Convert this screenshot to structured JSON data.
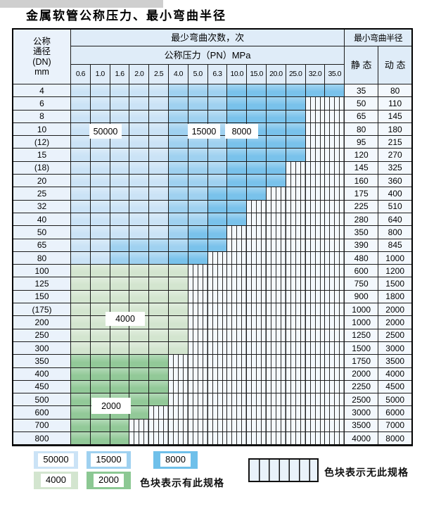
{
  "title": "金属软管公称压力、最小弯曲半径",
  "table": {
    "corner_header_lines": [
      "公称",
      "通径",
      "(DN)",
      "mm"
    ],
    "bend_cycles_header": "最少弯曲次数，次",
    "pressure_header": "公称压力（PN）MPa",
    "radius_header": "最小弯曲半径",
    "static_header": "静 态",
    "dynamic_header": "动 态",
    "pressure_columns": [
      "0.6",
      "1.0",
      "1.6",
      "2.0",
      "2.5",
      "4.0",
      "5.0",
      "6.3",
      "10.0",
      "15.0",
      "20.0",
      "25.0",
      "32.0",
      "35.0"
    ],
    "zone_meaning": {
      "a": "50000次",
      "b": "15000次",
      "c": "8000次",
      "d": "4000次",
      "e": "2000次",
      "x": "无此规格"
    },
    "rows": [
      {
        "dn": "4",
        "zones": "aaaaabbbcccccc",
        "static": "35",
        "dynamic": "80"
      },
      {
        "dn": "6",
        "zones": "aaaaabbbccccxx",
        "static": "50",
        "dynamic": "110"
      },
      {
        "dn": "8",
        "zones": "aaaaabbbccccxx",
        "static": "65",
        "dynamic": "145"
      },
      {
        "dn": "10",
        "zones": "aaaaabbbccccxx",
        "static": "80",
        "dynamic": "180"
      },
      {
        "dn": "(12)",
        "zones": "aaaaabbbccccxx",
        "static": "95",
        "dynamic": "215"
      },
      {
        "dn": "15",
        "zones": "aaaaabbbccccxx",
        "static": "120",
        "dynamic": "270"
      },
      {
        "dn": "(18)",
        "zones": "aaaaabbbcccxxx",
        "static": "145",
        "dynamic": "325"
      },
      {
        "dn": "20",
        "zones": "aaaaabbbcccxxx",
        "static": "160",
        "dynamic": "360"
      },
      {
        "dn": "25",
        "zones": "aaaaabbcccxxxx",
        "static": "175",
        "dynamic": "400"
      },
      {
        "dn": "32",
        "zones": "aaaaabbccxxxxx",
        "static": "225",
        "dynamic": "510"
      },
      {
        "dn": "40",
        "zones": "aaaaabbccxxxxx",
        "static": "280",
        "dynamic": "640"
      },
      {
        "dn": "50",
        "zones": "aaaaabccxxxxxx",
        "static": "350",
        "dynamic": "800"
      },
      {
        "dn": "65",
        "zones": "aabbbbccxxxxxx",
        "static": "390",
        "dynamic": "845"
      },
      {
        "dn": "80",
        "zones": "aabbbccxxxxxxx",
        "static": "480",
        "dynamic": "1000"
      },
      {
        "dn": "100",
        "zones": "ddddddxxxxxxxx",
        "static": "600",
        "dynamic": "1200"
      },
      {
        "dn": "125",
        "zones": "ddddddxxxxxxxx",
        "static": "750",
        "dynamic": "1500"
      },
      {
        "dn": "150",
        "zones": "ddddddxxxxxxxx",
        "static": "900",
        "dynamic": "1800"
      },
      {
        "dn": "(175)",
        "zones": "ddddddxxxxxxxx",
        "static": "1000",
        "dynamic": "2000"
      },
      {
        "dn": "200",
        "zones": "ddddddxxxxxxxx",
        "static": "1000",
        "dynamic": "2000"
      },
      {
        "dn": "250",
        "zones": "ddddddxxxxxxxx",
        "static": "1250",
        "dynamic": "2500"
      },
      {
        "dn": "300",
        "zones": "ddddddxxxxxxxx",
        "static": "1500",
        "dynamic": "3000"
      },
      {
        "dn": "350",
        "zones": "eeeeexxxxxxxxx",
        "static": "1750",
        "dynamic": "3500"
      },
      {
        "dn": "400",
        "zones": "eeeeexxxxxxxxx",
        "static": "2000",
        "dynamic": "4000"
      },
      {
        "dn": "450",
        "zones": "eeeeexxxxxxxxx",
        "static": "2250",
        "dynamic": "4500"
      },
      {
        "dn": "500",
        "zones": "eeeeexxxxxxxxx",
        "static": "2500",
        "dynamic": "5000"
      },
      {
        "dn": "600",
        "zones": "eeeexxxxxxxxxx",
        "static": "3000",
        "dynamic": "6000"
      },
      {
        "dn": "700",
        "zones": "eeexxxxxxxxxxx",
        "static": "3500",
        "dynamic": "7000"
      },
      {
        "dn": "800",
        "zones": "eeexxxxxxxxxxx",
        "static": "4000",
        "dynamic": "8000"
      }
    ]
  },
  "overlays": {
    "labels": [
      "50000",
      "15000",
      "8000",
      "4000",
      "2000"
    ]
  },
  "legend": {
    "chips": [
      {
        "label": "50000",
        "color": "#cbe3f6"
      },
      {
        "label": "15000",
        "color": "#9fd1f0"
      },
      {
        "label": "8000",
        "color": "#6fc0ea"
      },
      {
        "label": "4000",
        "color": "#d3e5cf"
      },
      {
        "label": "2000",
        "color": "#8cc893"
      }
    ],
    "has_spec_text": "色块表示有此规格",
    "no_spec_text": "色块表示无此规格"
  },
  "colors": {
    "cycles_50000": "#cbe3f6",
    "cycles_15000": "#9fd1f0",
    "cycles_8000": "#79c2eb",
    "cycles_4000": "#d3e5cf",
    "cycles_2000": "#92c998",
    "grid_line": "#1c1c1c",
    "header_bg": "#dfecf8",
    "label_bg": "#eaf2fb",
    "value_bg": "#f3f8fd"
  }
}
